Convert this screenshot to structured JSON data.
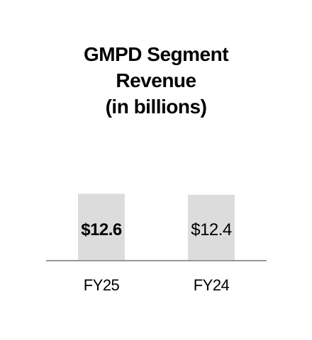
{
  "chart_data": {
    "type": "bar",
    "title_lines": [
      "GMPD Segment",
      "Revenue",
      "(in billions)"
    ],
    "categories": [
      "FY25",
      "FY24"
    ],
    "values": [
      12.6,
      12.4
    ],
    "data_labels": [
      "$12.6",
      "$12.4"
    ],
    "ylim": [
      0,
      12.8
    ],
    "grid": false,
    "legend": "none",
    "colors": {
      "bar": "#dcdcdc",
      "axis": "#999999",
      "text": "#000000"
    },
    "label_bold": [
      true,
      false
    ]
  }
}
